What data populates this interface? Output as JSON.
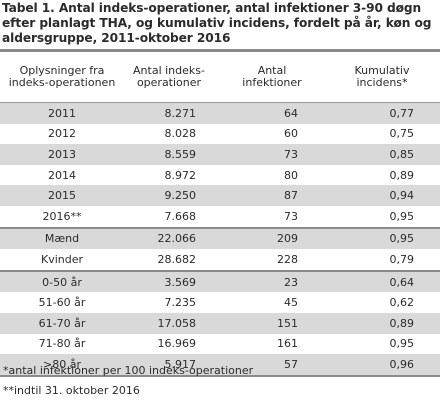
{
  "title": "Tabel 1. Antal indeks-operationer, antal infektioner 3-90 døgn efter planlagt THA, og kumulativ incidens, fordelt på år, køn og aldersgruppe, 2011-oktober 2016",
  "headers": {
    "c0": "Oplysninger fra indeks-operationen",
    "c1": "Antal  indeks-operationer",
    "c2": "Antal infektioner",
    "c3": "Kumulativ incidens*"
  },
  "groups": [
    [
      {
        "label": "2011",
        "ops": "8.271",
        "inf": "64",
        "inc": "0,77"
      },
      {
        "label": "2012",
        "ops": "8.028",
        "inf": "60",
        "inc": "0,75"
      },
      {
        "label": "2013",
        "ops": "8.559",
        "inf": "73",
        "inc": "0,85"
      },
      {
        "label": "2014",
        "ops": "8.972",
        "inf": "80",
        "inc": "0,89"
      },
      {
        "label": "2015",
        "ops": "9.250",
        "inf": "87",
        "inc": "0,94"
      },
      {
        "label": "2016**",
        "ops": "7.668",
        "inf": "73",
        "inc": "0,95"
      }
    ],
    [
      {
        "label": "Mænd",
        "ops": "22.066",
        "inf": "209",
        "inc": "0,95"
      },
      {
        "label": "Kvinder",
        "ops": "28.682",
        "inf": "228",
        "inc": "0,79"
      }
    ],
    [
      {
        "label": "0-50 år",
        "ops": "3.569",
        "inf": "23",
        "inc": "0,64"
      },
      {
        "label": "51-60 år",
        "ops": "7.235",
        "inf": "45",
        "inc": "0,62"
      },
      {
        "label": "61-70 år",
        "ops": "17.058",
        "inf": "151",
        "inc": "0,89"
      },
      {
        "label": "71-80 år",
        "ops": "16.969",
        "inf": "161",
        "inc": "0,95"
      },
      {
        "label": ">80 år",
        "ops": "5.917",
        "inf": "57",
        "inc": "0,96"
      }
    ]
  ],
  "footnotes": [
    "*antal infektioner per 100 indeks-operationer",
    "**indtil 31. oktober 2016"
  ]
}
